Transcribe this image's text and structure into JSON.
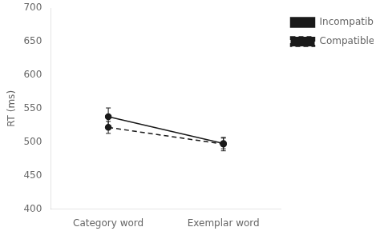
{
  "chart_data": {
    "type": "line",
    "categories": [
      "Category word",
      "Exemplar word"
    ],
    "series": [
      {
        "name": "Incompatible",
        "color": "#1a1a1a",
        "line_style": "solid",
        "marker": "circle",
        "values": [
          538,
          498
        ],
        "yerr": [
          13,
          8
        ]
      },
      {
        "name": "Compatible",
        "color": "#1a1a1a",
        "line_style": "dashed",
        "marker": "circle",
        "values": [
          522,
          497
        ],
        "yerr": [
          9,
          10
        ]
      }
    ],
    "ylabel": "RT (ms)",
    "ylim": [
      400,
      700
    ],
    "yticks": [
      400,
      450,
      500,
      550,
      600,
      650,
      700
    ],
    "grid": false,
    "legend": "right"
  }
}
